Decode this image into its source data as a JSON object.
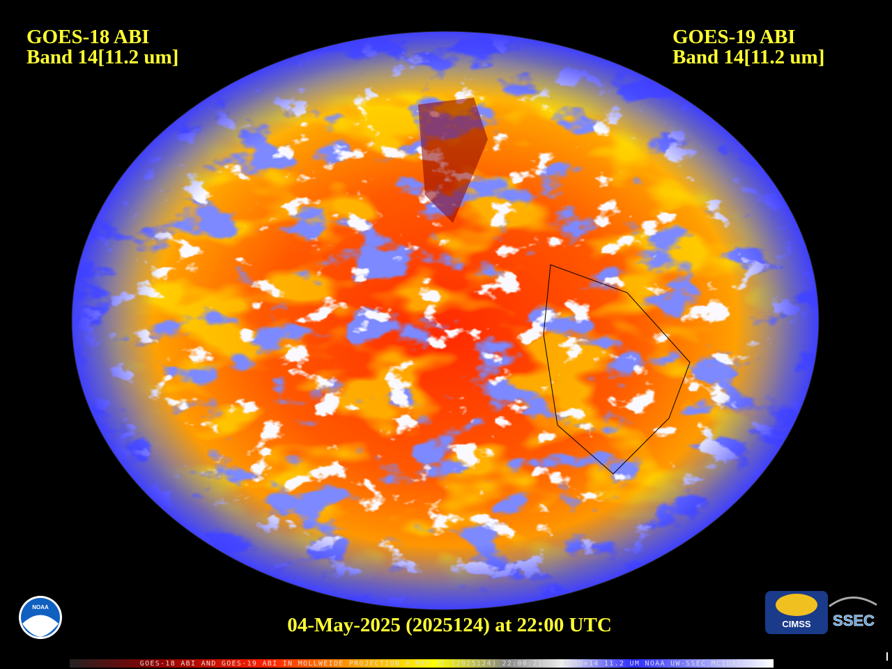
{
  "header": {
    "left": {
      "line1": "GOES-18 ABI",
      "line2": "Band 14[11.2 um]"
    },
    "right": {
      "line1": "GOES-19 ABI",
      "line2": "Band 14[11.2 um]"
    }
  },
  "timestamp": "04-May-2025 (2025124) at 22:00 UTC",
  "footer": "GOES-18 ABI AND GOES-19 ABI IN MOLLWEIDE PROJECTION 4 MAY 25 (2025124) 22:00:21UTC BAND=14 11.2 UM NOAA UW-SSEC MCIDAS-X",
  "logos": {
    "noaa": "NOAA",
    "cimss": "CIMSS",
    "ssec": "SSEC"
  }
}
